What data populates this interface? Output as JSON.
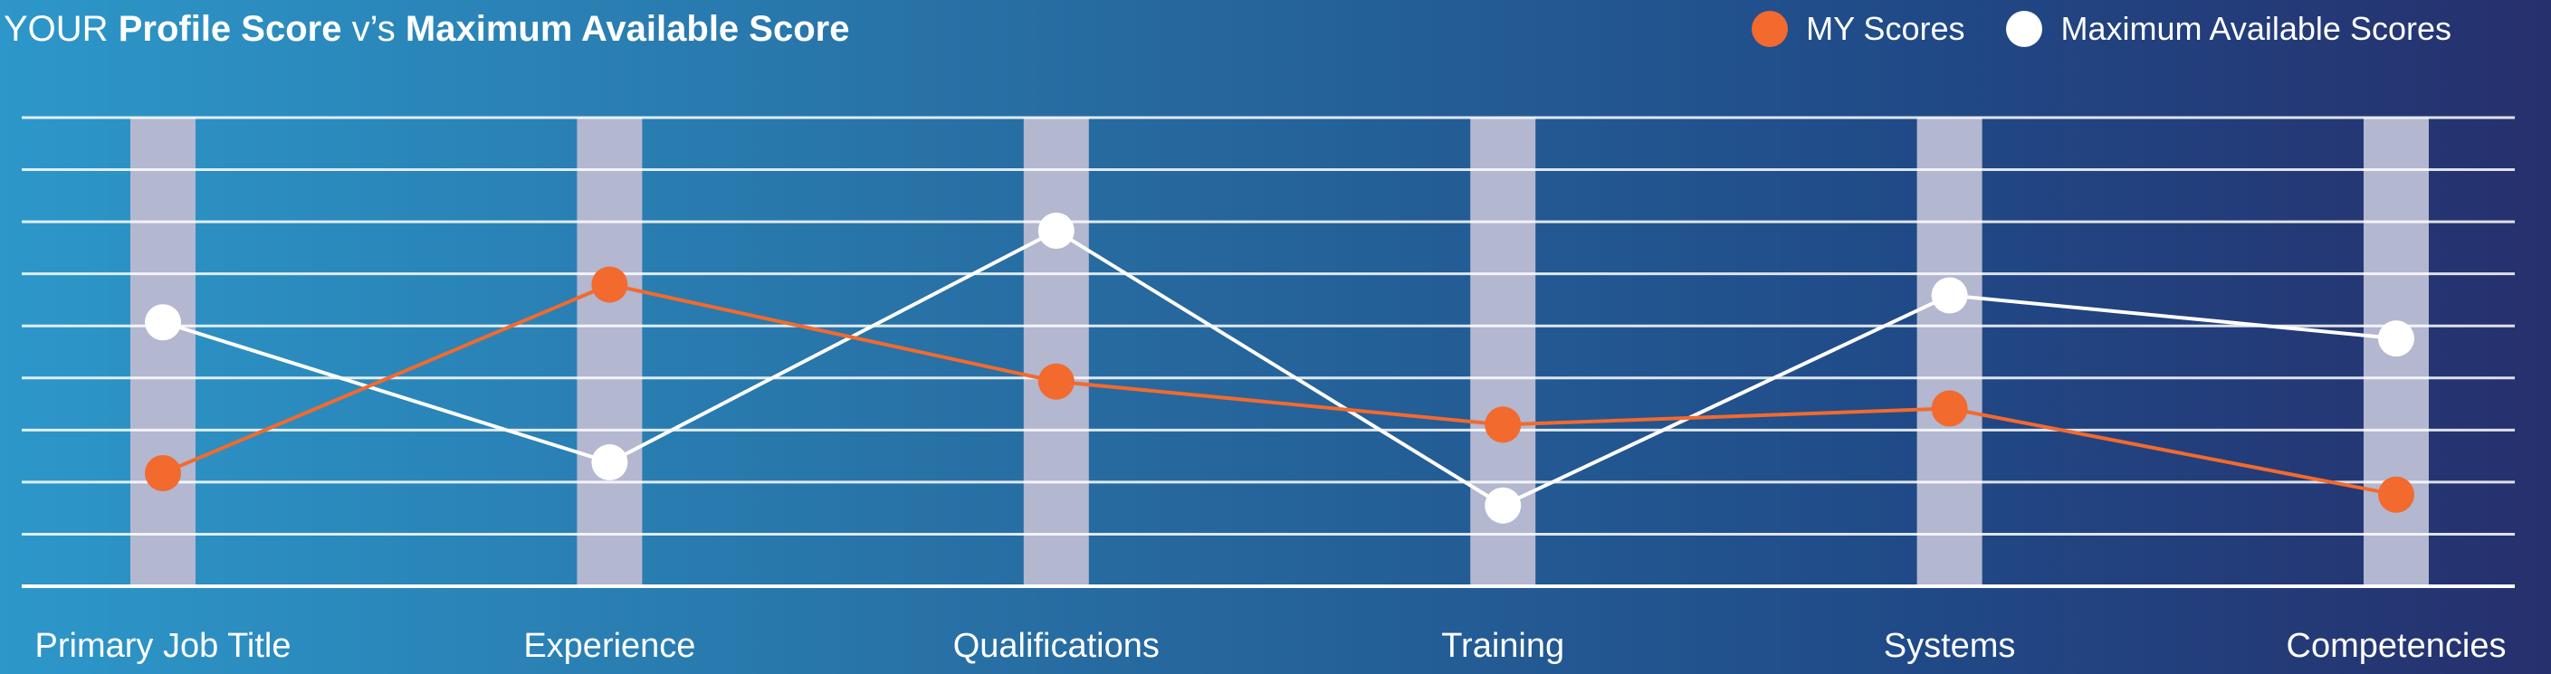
{
  "title": {
    "prefix": "YOUR",
    "bold1": "Profile Score",
    "middle": "v’s",
    "bold2": "Maximum Available Score"
  },
  "colors": {
    "my_scores": "#f26a2e",
    "max_scores": "#ffffff",
    "column_band": "#b3b7d0",
    "gridline": "#ffffff"
  },
  "chart_data": {
    "type": "line",
    "categories": [
      "Primary Job Title",
      "Experience",
      "Qualifications",
      "Training",
      "Systems",
      "Competencies"
    ],
    "series": [
      {
        "name": "MY Scores",
        "values": [
          2.1,
          5.6,
          3.8,
          3.0,
          3.3,
          1.7
        ]
      },
      {
        "name": "Maximum Available Scores",
        "values": [
          4.9,
          2.3,
          6.6,
          1.5,
          5.4,
          4.6
        ]
      }
    ],
    "ylim": [
      0,
      8.7
    ],
    "grid": true,
    "legend_position": "top-right"
  }
}
